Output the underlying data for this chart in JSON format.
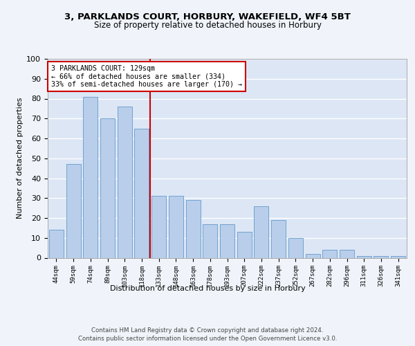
{
  "title1": "3, PARKLANDS COURT, HORBURY, WAKEFIELD, WF4 5BT",
  "title2": "Size of property relative to detached houses in Horbury",
  "xlabel": "Distribution of detached houses by size in Horbury",
  "ylabel": "Number of detached properties",
  "categories": [
    "44sqm",
    "59sqm",
    "74sqm",
    "89sqm",
    "103sqm",
    "118sqm",
    "133sqm",
    "148sqm",
    "163sqm",
    "178sqm",
    "193sqm",
    "207sqm",
    "222sqm",
    "237sqm",
    "252sqm",
    "267sqm",
    "282sqm",
    "296sqm",
    "311sqm",
    "326sqm",
    "341sqm"
  ],
  "values": [
    14,
    47,
    81,
    70,
    76,
    65,
    31,
    31,
    29,
    17,
    17,
    13,
    26,
    19,
    10,
    2,
    4,
    4,
    1,
    1,
    1
  ],
  "bar_color": "#b8ceea",
  "bar_edge_color": "#6699cc",
  "background_color": "#dce6f5",
  "grid_color": "#ffffff",
  "vline_x": 5.5,
  "vline_color": "#cc0000",
  "annotation_text": "3 PARKLANDS COURT: 129sqm\n← 66% of detached houses are smaller (334)\n33% of semi-detached houses are larger (170) →",
  "annotation_box_color": "#ffffff",
  "annotation_box_edge": "#cc0000",
  "footer": "Contains HM Land Registry data © Crown copyright and database right 2024.\nContains public sector information licensed under the Open Government Licence v3.0.",
  "fig_bg": "#f0f4fa",
  "ylim": [
    0,
    100
  ],
  "yticks": [
    0,
    10,
    20,
    30,
    40,
    50,
    60,
    70,
    80,
    90,
    100
  ]
}
